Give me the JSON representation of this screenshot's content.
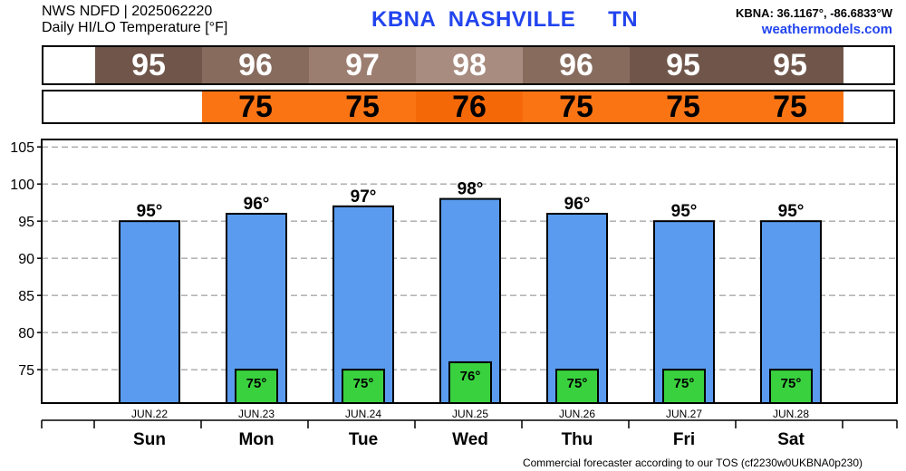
{
  "header": {
    "line1": "NWS NDFD | 2025062220",
    "line2": "Daily HI/LO Temperature [°F]",
    "station": "KBNA",
    "city": "NASHVILLE",
    "state": "TN",
    "coords": "KBNA: 36.1167°, -86.6833°W",
    "site": "weathermodels.com"
  },
  "hi_strip": [
    {
      "value": "95",
      "color": "#70564a"
    },
    {
      "value": "96",
      "color": "#876c5e"
    },
    {
      "value": "97",
      "color": "#9c7e70"
    },
    {
      "value": "98",
      "color": "#a78c7f"
    },
    {
      "value": "96",
      "color": "#876c5e"
    },
    {
      "value": "95",
      "color": "#70564a"
    },
    {
      "value": "95",
      "color": "#70564a"
    }
  ],
  "lo_strip": [
    {
      "value": "",
      "color": "#ffffff"
    },
    {
      "value": "75",
      "color": "#fb7414"
    },
    {
      "value": "75",
      "color": "#fb7414"
    },
    {
      "value": "76",
      "color": "#f46808"
    },
    {
      "value": "75",
      "color": "#fb7414"
    },
    {
      "value": "75",
      "color": "#fb7414"
    },
    {
      "value": "75",
      "color": "#fb7414"
    }
  ],
  "chart_data": {
    "type": "bar",
    "categories": [
      "Sun",
      "Mon",
      "Tue",
      "Wed",
      "Thu",
      "Fri",
      "Sat"
    ],
    "dates": [
      "JUN.22",
      "JUN.23",
      "JUN.24",
      "JUN.25",
      "JUN.26",
      "JUN.27",
      "JUN.28"
    ],
    "series": [
      {
        "values": [
          95,
          96,
          97,
          98,
          96,
          95,
          95
        ],
        "color": "#5a9bef"
      },
      {
        "values": [
          null,
          75,
          75,
          76,
          75,
          75,
          75
        ],
        "color": "#3ad13f"
      }
    ],
    "hi_labels": [
      "95°",
      "96°",
      "97°",
      "98°",
      "96°",
      "95°",
      "95°"
    ],
    "lo_labels": [
      "",
      "75°",
      "75°",
      "76°",
      "75°",
      "75°",
      "75°"
    ],
    "yticks": [
      75,
      80,
      85,
      90,
      95,
      100,
      105
    ],
    "ylim": [
      70.5,
      106
    ],
    "grid": true,
    "xlabel": "",
    "ylabel": ""
  },
  "footer": "Commercial forecaster according to our TOS (cf2230w0UKBNA0p230)"
}
